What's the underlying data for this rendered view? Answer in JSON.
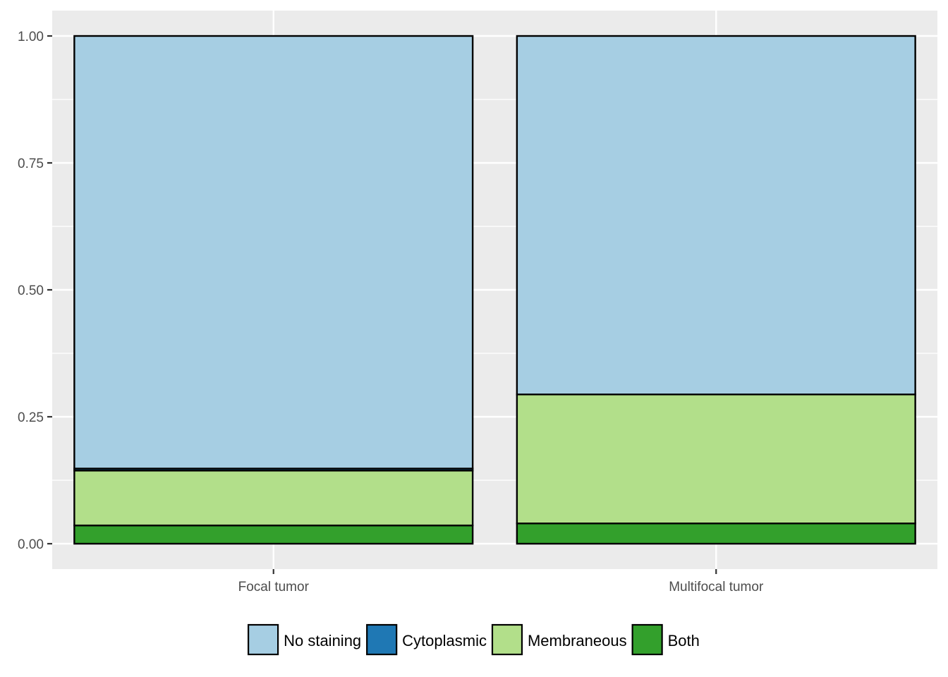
{
  "chart_data": {
    "type": "bar",
    "stacked": true,
    "title": "",
    "xlabel": "",
    "ylabel": "",
    "ylim": [
      -0.05,
      1.05
    ],
    "yticks": [
      0.0,
      0.25,
      0.5,
      0.75,
      1.0
    ],
    "ytick_labels": [
      "0.00",
      "0.25",
      "0.50",
      "0.75",
      "1.00"
    ],
    "categories": [
      "Focal tumor",
      "Multifocal tumor"
    ],
    "series": [
      {
        "name": "No staining",
        "color": "#A6CEE3",
        "values": [
          0.852,
          0.706
        ]
      },
      {
        "name": "Cytoplasmic",
        "color": "#1F78B4",
        "values": [
          0.004,
          0.0
        ]
      },
      {
        "name": "Membraneous",
        "color": "#B2DF8A",
        "values": [
          0.108,
          0.254
        ]
      },
      {
        "name": "Both",
        "color": "#33A02C",
        "values": [
          0.036,
          0.04
        ]
      }
    ],
    "grid": true,
    "panel_background": "#EBEBEB",
    "legend_position": "bottom"
  }
}
